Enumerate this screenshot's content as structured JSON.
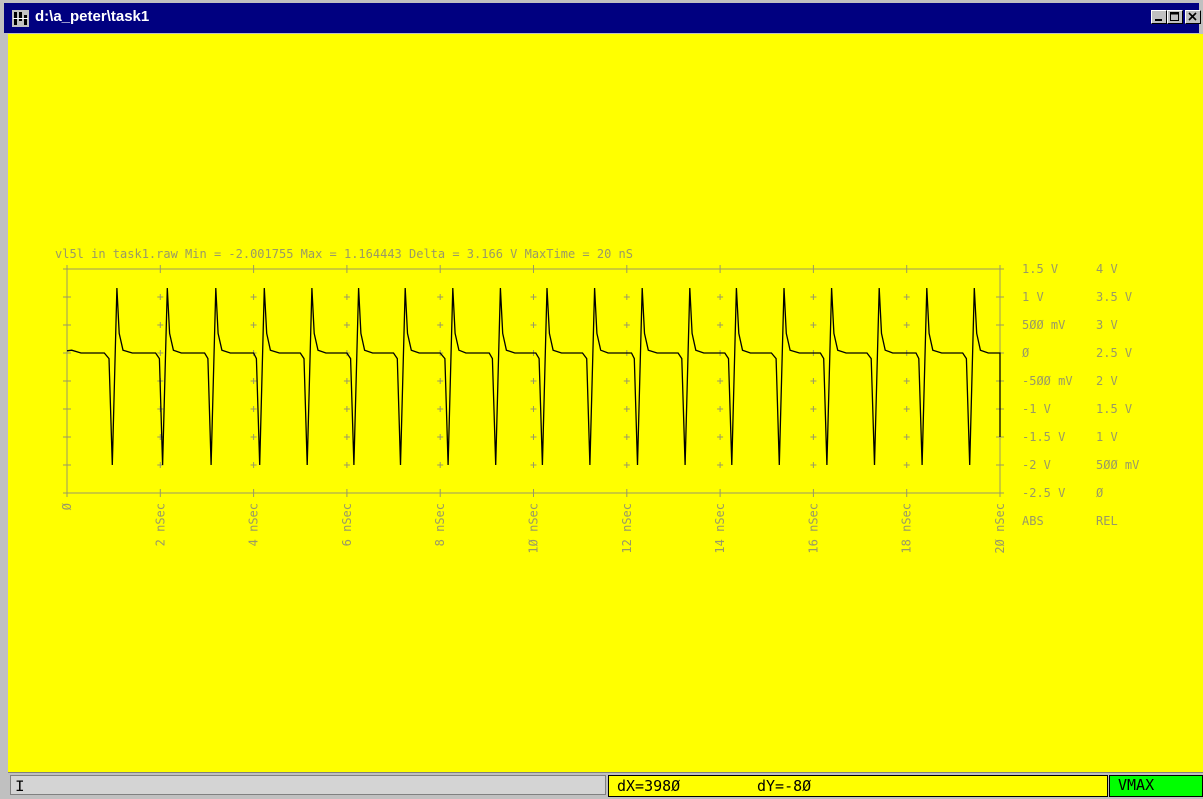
{
  "window": {
    "title": "d:\\a_peter\\task1",
    "controls": {
      "minimize_icon": "minimize-icon",
      "maximize_icon": "maximize-icon",
      "close_icon": "close-icon"
    }
  },
  "plot": {
    "header": "vl5l in task1.raw  Min = -2.001755  Max = 1.164443  Delta = 3.166 V  MaxTime = 20 nS",
    "background_color": "#ffff00",
    "axis_color": "#999966",
    "trace_color": "#000000",
    "abs_label": "ABS",
    "rel_label": "REL"
  },
  "chart_data": {
    "type": "line",
    "series": [
      {
        "points": [
          [
            0,
            0.04
          ],
          [
            0.1,
            0.05
          ],
          [
            0.3,
            0.0
          ],
          [
            0.8,
            0.0
          ],
          [
            0.9,
            -0.1
          ],
          [
            0.97,
            -2.0
          ],
          [
            1.07,
            1.16
          ],
          [
            1.12,
            0.35
          ],
          [
            1.2,
            0.05
          ],
          [
            1.4,
            0.0
          ],
          [
            1.9,
            0.0
          ],
          [
            1.98,
            -0.1
          ],
          [
            2.05,
            -2.0
          ],
          [
            2.15,
            1.16
          ],
          [
            2.2,
            0.35
          ],
          [
            2.28,
            0.05
          ],
          [
            2.45,
            0.0
          ],
          [
            2.95,
            0.0
          ],
          [
            3.02,
            -0.1
          ],
          [
            3.09,
            -2.0
          ],
          [
            3.19,
            1.16
          ],
          [
            3.24,
            0.35
          ],
          [
            3.32,
            0.05
          ],
          [
            3.5,
            0.0
          ],
          [
            4.0,
            0.0
          ],
          [
            4.06,
            -0.1
          ],
          [
            4.13,
            -2.0
          ],
          [
            4.23,
            1.16
          ],
          [
            4.28,
            0.35
          ],
          [
            4.36,
            0.05
          ],
          [
            4.55,
            0.0
          ],
          [
            5.0,
            0.0
          ],
          [
            5.08,
            -0.1
          ],
          [
            5.15,
            -2.0
          ],
          [
            5.25,
            1.16
          ],
          [
            5.3,
            0.35
          ],
          [
            5.38,
            0.05
          ],
          [
            5.55,
            0.0
          ],
          [
            6.0,
            0.0
          ],
          [
            6.08,
            -0.1
          ],
          [
            6.15,
            -2.0
          ],
          [
            6.25,
            1.16
          ],
          [
            6.3,
            0.35
          ],
          [
            6.38,
            0.05
          ],
          [
            6.55,
            0.0
          ],
          [
            7.0,
            0.0
          ],
          [
            7.08,
            -0.1
          ],
          [
            7.15,
            -2.0
          ],
          [
            7.25,
            1.16
          ],
          [
            7.3,
            0.35
          ],
          [
            7.38,
            0.05
          ],
          [
            7.55,
            0.0
          ],
          [
            8.0,
            0.0
          ],
          [
            8.1,
            -0.1
          ],
          [
            8.17,
            -2.0
          ],
          [
            8.27,
            1.16
          ],
          [
            8.32,
            0.35
          ],
          [
            8.4,
            0.05
          ],
          [
            8.55,
            0.0
          ],
          [
            9.05,
            0.0
          ],
          [
            9.12,
            -0.1
          ],
          [
            9.19,
            -2.0
          ],
          [
            9.29,
            1.16
          ],
          [
            9.34,
            0.35
          ],
          [
            9.42,
            0.05
          ],
          [
            9.6,
            0.0
          ],
          [
            10.05,
            0.0
          ],
          [
            10.12,
            -0.1
          ],
          [
            10.19,
            -2.0
          ],
          [
            10.29,
            1.16
          ],
          [
            10.34,
            0.35
          ],
          [
            10.42,
            0.05
          ],
          [
            10.6,
            0.0
          ],
          [
            11.05,
            0.0
          ],
          [
            11.14,
            -0.1
          ],
          [
            11.21,
            -2.0
          ],
          [
            11.31,
            1.16
          ],
          [
            11.36,
            0.35
          ],
          [
            11.44,
            0.05
          ],
          [
            11.6,
            0.0
          ],
          [
            12.1,
            0.0
          ],
          [
            12.16,
            -0.1
          ],
          [
            12.23,
            -2.0
          ],
          [
            12.33,
            1.16
          ],
          [
            12.38,
            0.35
          ],
          [
            12.46,
            0.05
          ],
          [
            12.65,
            0.0
          ],
          [
            13.1,
            0.0
          ],
          [
            13.18,
            -0.1
          ],
          [
            13.25,
            -2.0
          ],
          [
            13.35,
            1.16
          ],
          [
            13.4,
            0.35
          ],
          [
            13.48,
            0.05
          ],
          [
            13.65,
            0.0
          ],
          [
            14.1,
            0.0
          ],
          [
            14.18,
            -0.1
          ],
          [
            14.25,
            -2.0
          ],
          [
            14.35,
            1.16
          ],
          [
            14.4,
            0.35
          ],
          [
            14.48,
            0.05
          ],
          [
            14.65,
            0.0
          ],
          [
            15.1,
            0.0
          ],
          [
            15.2,
            -0.1
          ],
          [
            15.27,
            -2.0
          ],
          [
            15.37,
            1.16
          ],
          [
            15.42,
            0.35
          ],
          [
            15.5,
            0.05
          ],
          [
            15.7,
            0.0
          ],
          [
            16.15,
            0.0
          ],
          [
            16.22,
            -0.1
          ],
          [
            16.29,
            -2.0
          ],
          [
            16.39,
            1.16
          ],
          [
            16.44,
            0.35
          ],
          [
            16.52,
            0.05
          ],
          [
            16.7,
            0.0
          ],
          [
            17.15,
            0.0
          ],
          [
            17.24,
            -0.1
          ],
          [
            17.31,
            -2.0
          ],
          [
            17.41,
            1.16
          ],
          [
            17.46,
            0.35
          ],
          [
            17.54,
            0.05
          ],
          [
            17.7,
            0.0
          ],
          [
            18.2,
            0.0
          ],
          [
            18.26,
            -0.1
          ],
          [
            18.33,
            -2.0
          ],
          [
            18.43,
            1.16
          ],
          [
            18.48,
            0.35
          ],
          [
            18.56,
            0.05
          ],
          [
            18.75,
            0.0
          ],
          [
            19.2,
            0.0
          ],
          [
            19.28,
            -0.1
          ],
          [
            19.35,
            -2.0
          ],
          [
            19.45,
            1.16
          ],
          [
            19.5,
            0.35
          ],
          [
            19.58,
            0.05
          ],
          [
            19.75,
            0.0
          ],
          [
            20.0,
            0.0
          ],
          [
            20.0,
            -1.5
          ]
        ]
      }
    ],
    "xlim": [
      0,
      20
    ],
    "ylim": [
      -2.5,
      1.5
    ],
    "x_ticks": [
      0,
      2,
      4,
      6,
      8,
      10,
      12,
      14,
      16,
      18,
      20
    ],
    "x_tick_labels": [
      "Ø",
      "2 nSec",
      "4 nSec",
      "6 nSec",
      "8 nSec",
      "1Ø nSec",
      "12 nSec",
      "14 nSec",
      "16 nSec",
      "18 nSec",
      "2Ø nSec"
    ],
    "y_ticks": [
      1.5,
      1,
      0.5,
      0,
      -0.5,
      -1,
      -1.5,
      -2,
      -2.5
    ],
    "y_abs_labels": [
      "1.5 V",
      "1 V",
      "5ØØ mV",
      "Ø",
      "-5ØØ mV",
      "-1 V",
      "-1.5 V",
      "-2 V",
      "-2.5 V"
    ],
    "y_rel_labels": [
      "4 V",
      "3.5 V",
      "3 V",
      "2.5 V",
      "2 V",
      "1.5 V",
      "1 V",
      "5ØØ mV",
      "Ø"
    ],
    "grid": "crosshair marks"
  },
  "status": {
    "caret": "I",
    "dx": "dX=398Ø",
    "dy": "dY=-8Ø",
    "mode": "VMAX",
    "mode_color": "#00ff00"
  }
}
